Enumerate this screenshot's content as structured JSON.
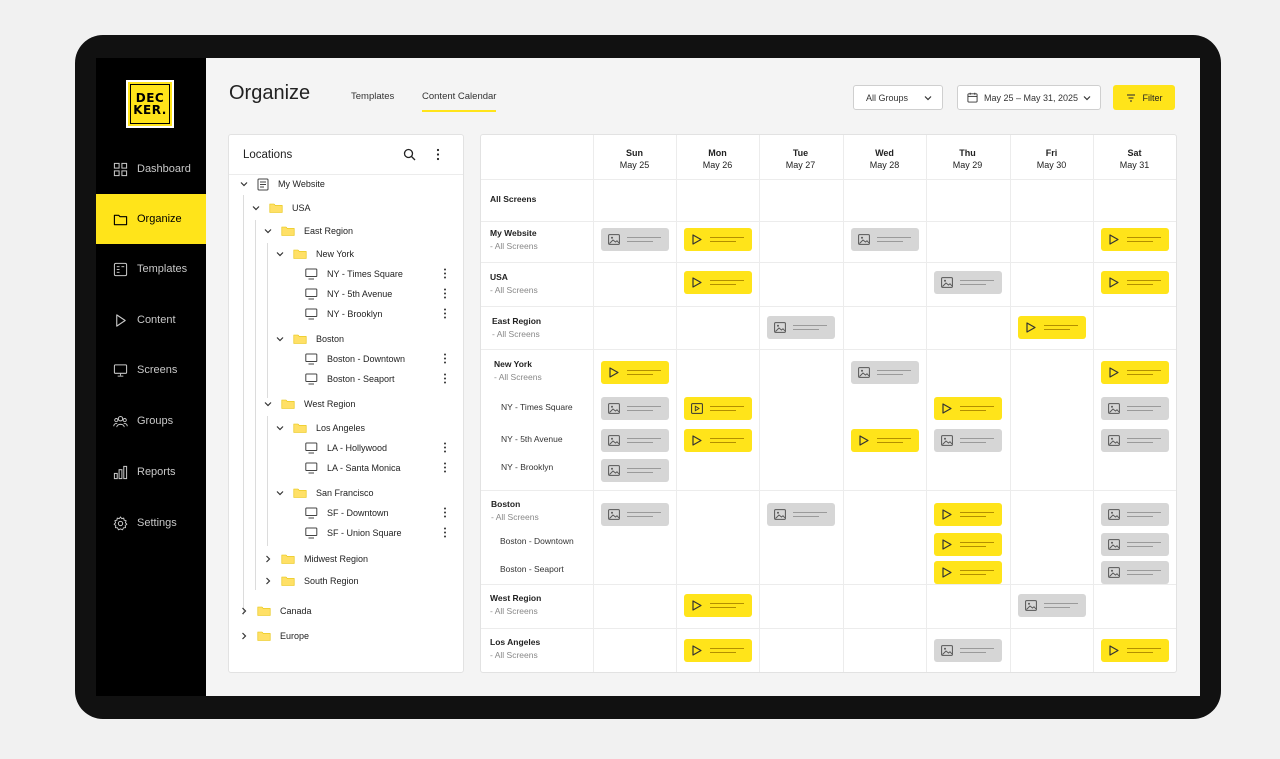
{
  "brand": {
    "logo_line1": "DEC",
    "logo_line2": "KER."
  },
  "nav": [
    {
      "label": "Dashboard",
      "icon": "grid-icon"
    },
    {
      "label": "Organize",
      "icon": "folder-icon",
      "active": true
    },
    {
      "label": "Templates",
      "icon": "templates-icon"
    },
    {
      "label": "Content",
      "icon": "play-icon"
    },
    {
      "label": "Screens",
      "icon": "monitor-icon"
    },
    {
      "label": "Groups",
      "icon": "users-icon"
    },
    {
      "label": "Reports",
      "icon": "bar-chart-icon"
    },
    {
      "label": "Settings",
      "icon": "gear-icon"
    }
  ],
  "header": {
    "title": "Organize",
    "tabs": [
      {
        "label": "Templates"
      },
      {
        "label": "Content Calendar",
        "active": true
      }
    ],
    "groups_select": "All Groups",
    "date_range": "May 25 – May 31, 2025",
    "filter_label": "Filter"
  },
  "locations": {
    "title": "Locations",
    "tree": [
      {
        "label": "My Website",
        "type": "site",
        "expanded": true
      },
      {
        "label": "USA",
        "type": "folder",
        "expanded": true
      },
      {
        "label": "East Region",
        "type": "folder",
        "expanded": true
      },
      {
        "label": "New York",
        "type": "folder",
        "expanded": true
      },
      {
        "label": "NY - Times Square",
        "type": "screen"
      },
      {
        "label": "NY - 5th Avenue",
        "type": "screen"
      },
      {
        "label": "NY - Brooklyn",
        "type": "screen"
      },
      {
        "label": "Boston",
        "type": "folder",
        "expanded": true
      },
      {
        "label": "Boston - Downtown",
        "type": "screen"
      },
      {
        "label": "Boston - Seaport",
        "type": "screen"
      },
      {
        "label": "West Region",
        "type": "folder",
        "expanded": true
      },
      {
        "label": "Los Angeles",
        "type": "folder",
        "expanded": true
      },
      {
        "label": "LA - Hollywood",
        "type": "screen"
      },
      {
        "label": "LA - Santa Monica",
        "type": "screen"
      },
      {
        "label": "San Francisco",
        "type": "folder",
        "expanded": true
      },
      {
        "label": "SF - Downtown",
        "type": "screen"
      },
      {
        "label": "SF - Union Square",
        "type": "screen"
      },
      {
        "label": "Midwest Region",
        "type": "folder",
        "expanded": false
      },
      {
        "label": "South Region",
        "type": "folder",
        "expanded": false
      },
      {
        "label": "Canada",
        "type": "folder",
        "expanded": false
      },
      {
        "label": "Europe",
        "type": "folder",
        "expanded": false
      }
    ]
  },
  "calendar": {
    "days": [
      {
        "name": "Sun",
        "date": "May 25"
      },
      {
        "name": "Mon",
        "date": "May 26"
      },
      {
        "name": "Tue",
        "date": "May 27"
      },
      {
        "name": "Wed",
        "date": "May 28"
      },
      {
        "name": "Thu",
        "date": "May 29"
      },
      {
        "name": "Fri",
        "date": "May 30"
      },
      {
        "name": "Sat",
        "date": "May 31"
      }
    ],
    "rows": [
      {
        "title": "All Screens",
        "sub": ""
      },
      {
        "title": "My Website",
        "sub": "- All Screens"
      },
      {
        "title": "USA",
        "sub": "- All Screens"
      },
      {
        "title": "East Region",
        "sub": "- All Screens"
      },
      {
        "title": "New York",
        "sub": "- All Screens"
      },
      {
        "title": "Boston",
        "sub": "- All Screens"
      },
      {
        "title": "West Region",
        "sub": "- All Screens"
      },
      {
        "title": "Los Angeles",
        "sub": "- All Screens"
      }
    ],
    "sub_rows": [
      "NY - Times Square",
      "NY - 5th Avenue",
      "NY - Brooklyn",
      "Boston - Downtown",
      "Boston - Seaport"
    ],
    "entries": [
      {
        "row": "My Website",
        "day": "Sun",
        "kind": "image"
      },
      {
        "row": "My Website",
        "day": "Mon",
        "kind": "video"
      },
      {
        "row": "My Website",
        "day": "Wed",
        "kind": "image"
      },
      {
        "row": "My Website",
        "day": "Sat",
        "kind": "video"
      },
      {
        "row": "USA",
        "day": "Mon",
        "kind": "video"
      },
      {
        "row": "USA",
        "day": "Thu",
        "kind": "image"
      },
      {
        "row": "USA",
        "day": "Sat",
        "kind": "video"
      },
      {
        "row": "East Region",
        "day": "Tue",
        "kind": "image"
      },
      {
        "row": "East Region",
        "day": "Fri",
        "kind": "video"
      },
      {
        "row": "New York",
        "day": "Sun",
        "kind": "video"
      },
      {
        "row": "New York",
        "day": "Wed",
        "kind": "image"
      },
      {
        "row": "New York",
        "day": "Sat",
        "kind": "video"
      },
      {
        "row": "NY - Times Square",
        "day": "Sun",
        "kind": "image"
      },
      {
        "row": "NY - Times Square",
        "day": "Mon",
        "kind": "video-frame"
      },
      {
        "row": "NY - Times Square",
        "day": "Thu",
        "kind": "video"
      },
      {
        "row": "NY - Times Square",
        "day": "Sat",
        "kind": "image"
      },
      {
        "row": "NY - 5th Avenue",
        "day": "Sun",
        "kind": "image"
      },
      {
        "row": "NY - 5th Avenue",
        "day": "Mon",
        "kind": "video"
      },
      {
        "row": "NY - 5th Avenue",
        "day": "Wed",
        "kind": "video"
      },
      {
        "row": "NY - 5th Avenue",
        "day": "Thu",
        "kind": "image"
      },
      {
        "row": "NY - 5th Avenue",
        "day": "Sat",
        "kind": "image"
      },
      {
        "row": "NY - Brooklyn",
        "day": "Sun",
        "kind": "image"
      },
      {
        "row": "Boston",
        "day": "Sun",
        "kind": "image"
      },
      {
        "row": "Boston",
        "day": "Tue",
        "kind": "image"
      },
      {
        "row": "Boston",
        "day": "Thu",
        "kind": "video"
      },
      {
        "row": "Boston",
        "day": "Sat",
        "kind": "image"
      },
      {
        "row": "Boston - Downtown",
        "day": "Thu",
        "kind": "video"
      },
      {
        "row": "Boston - Downtown",
        "day": "Sat",
        "kind": "image"
      },
      {
        "row": "Boston - Seaport",
        "day": "Thu",
        "kind": "video"
      },
      {
        "row": "Boston - Seaport",
        "day": "Sat",
        "kind": "image"
      },
      {
        "row": "West Region",
        "day": "Mon",
        "kind": "video"
      },
      {
        "row": "West Region",
        "day": "Fri",
        "kind": "image"
      },
      {
        "row": "Los Angeles",
        "day": "Mon",
        "kind": "video"
      },
      {
        "row": "Los Angeles",
        "day": "Thu",
        "kind": "image"
      },
      {
        "row": "Los Angeles",
        "day": "Sat",
        "kind": "video"
      }
    ]
  },
  "colors": {
    "accent": "#ffe41a",
    "sidebar": "#000000",
    "image_chip": "#d6d6d6"
  }
}
